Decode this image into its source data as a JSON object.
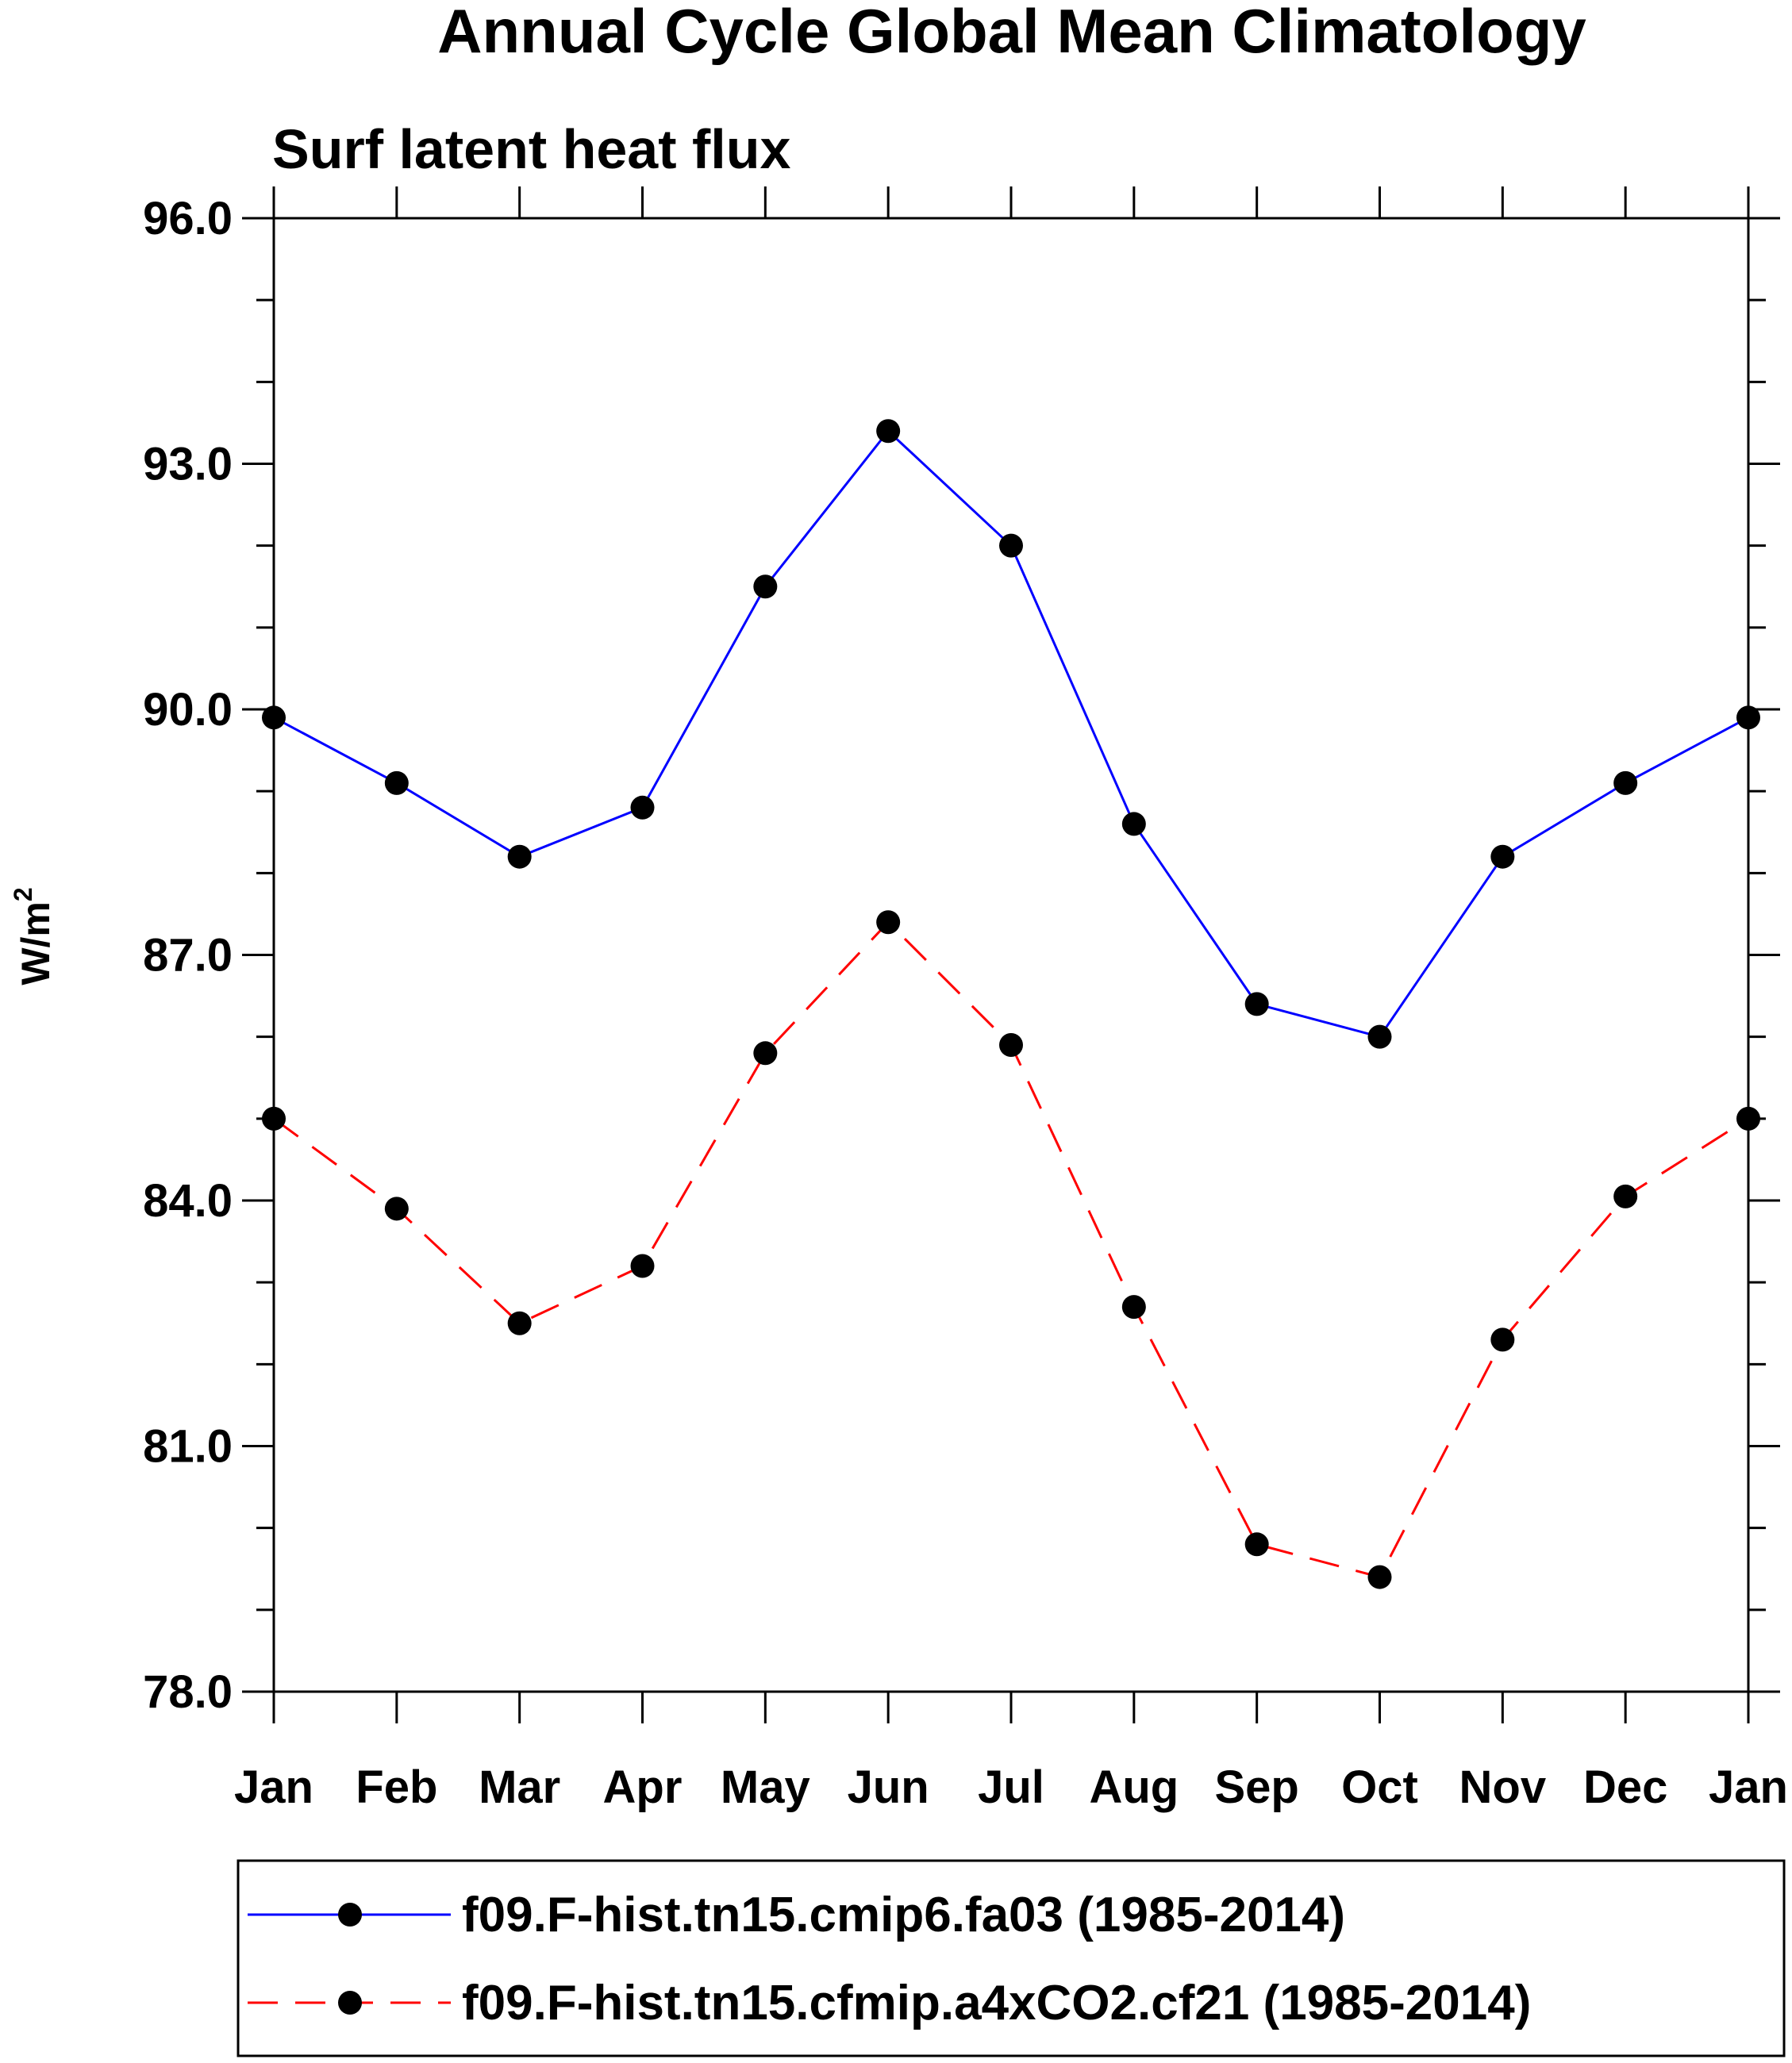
{
  "chart_data": {
    "type": "line",
    "title": "Annual Cycle Global Mean Climatology",
    "subtitle": "Surf latent heat flux",
    "ylabel": "W/m",
    "ylabel_sup": "2",
    "ylim": [
      78.0,
      96.0
    ],
    "y_ticks": [
      "78.0",
      "81.0",
      "84.0",
      "87.0",
      "90.0",
      "93.0",
      "96.0"
    ],
    "y_tick_values": [
      78,
      81,
      84,
      87,
      90,
      93,
      96
    ],
    "categories": [
      "Jan",
      "Feb",
      "Mar",
      "Apr",
      "May",
      "Jun",
      "Jul",
      "Aug",
      "Sep",
      "Oct",
      "Nov",
      "Dec",
      "Jan"
    ],
    "grid": false,
    "legend_position": "bottom",
    "series": [
      {
        "name": "f09.F-hist.tn15.cmip6.fa03 (1985-2014)",
        "color": "#0000ff",
        "dash": "solid",
        "values": [
          89.9,
          89.1,
          88.2,
          88.8,
          91.5,
          93.4,
          92.0,
          88.6,
          86.4,
          86.0,
          88.2,
          89.1,
          89.9
        ]
      },
      {
        "name": "f09.F-hist.tn15.cfmip.a4xCO2.cf21 (1985-2014)",
        "color": "#ff0000",
        "dash": "dashed",
        "values": [
          85.0,
          83.9,
          82.5,
          83.2,
          85.8,
          87.4,
          85.9,
          82.7,
          79.8,
          79.4,
          82.3,
          84.05,
          85.0
        ]
      }
    ]
  }
}
